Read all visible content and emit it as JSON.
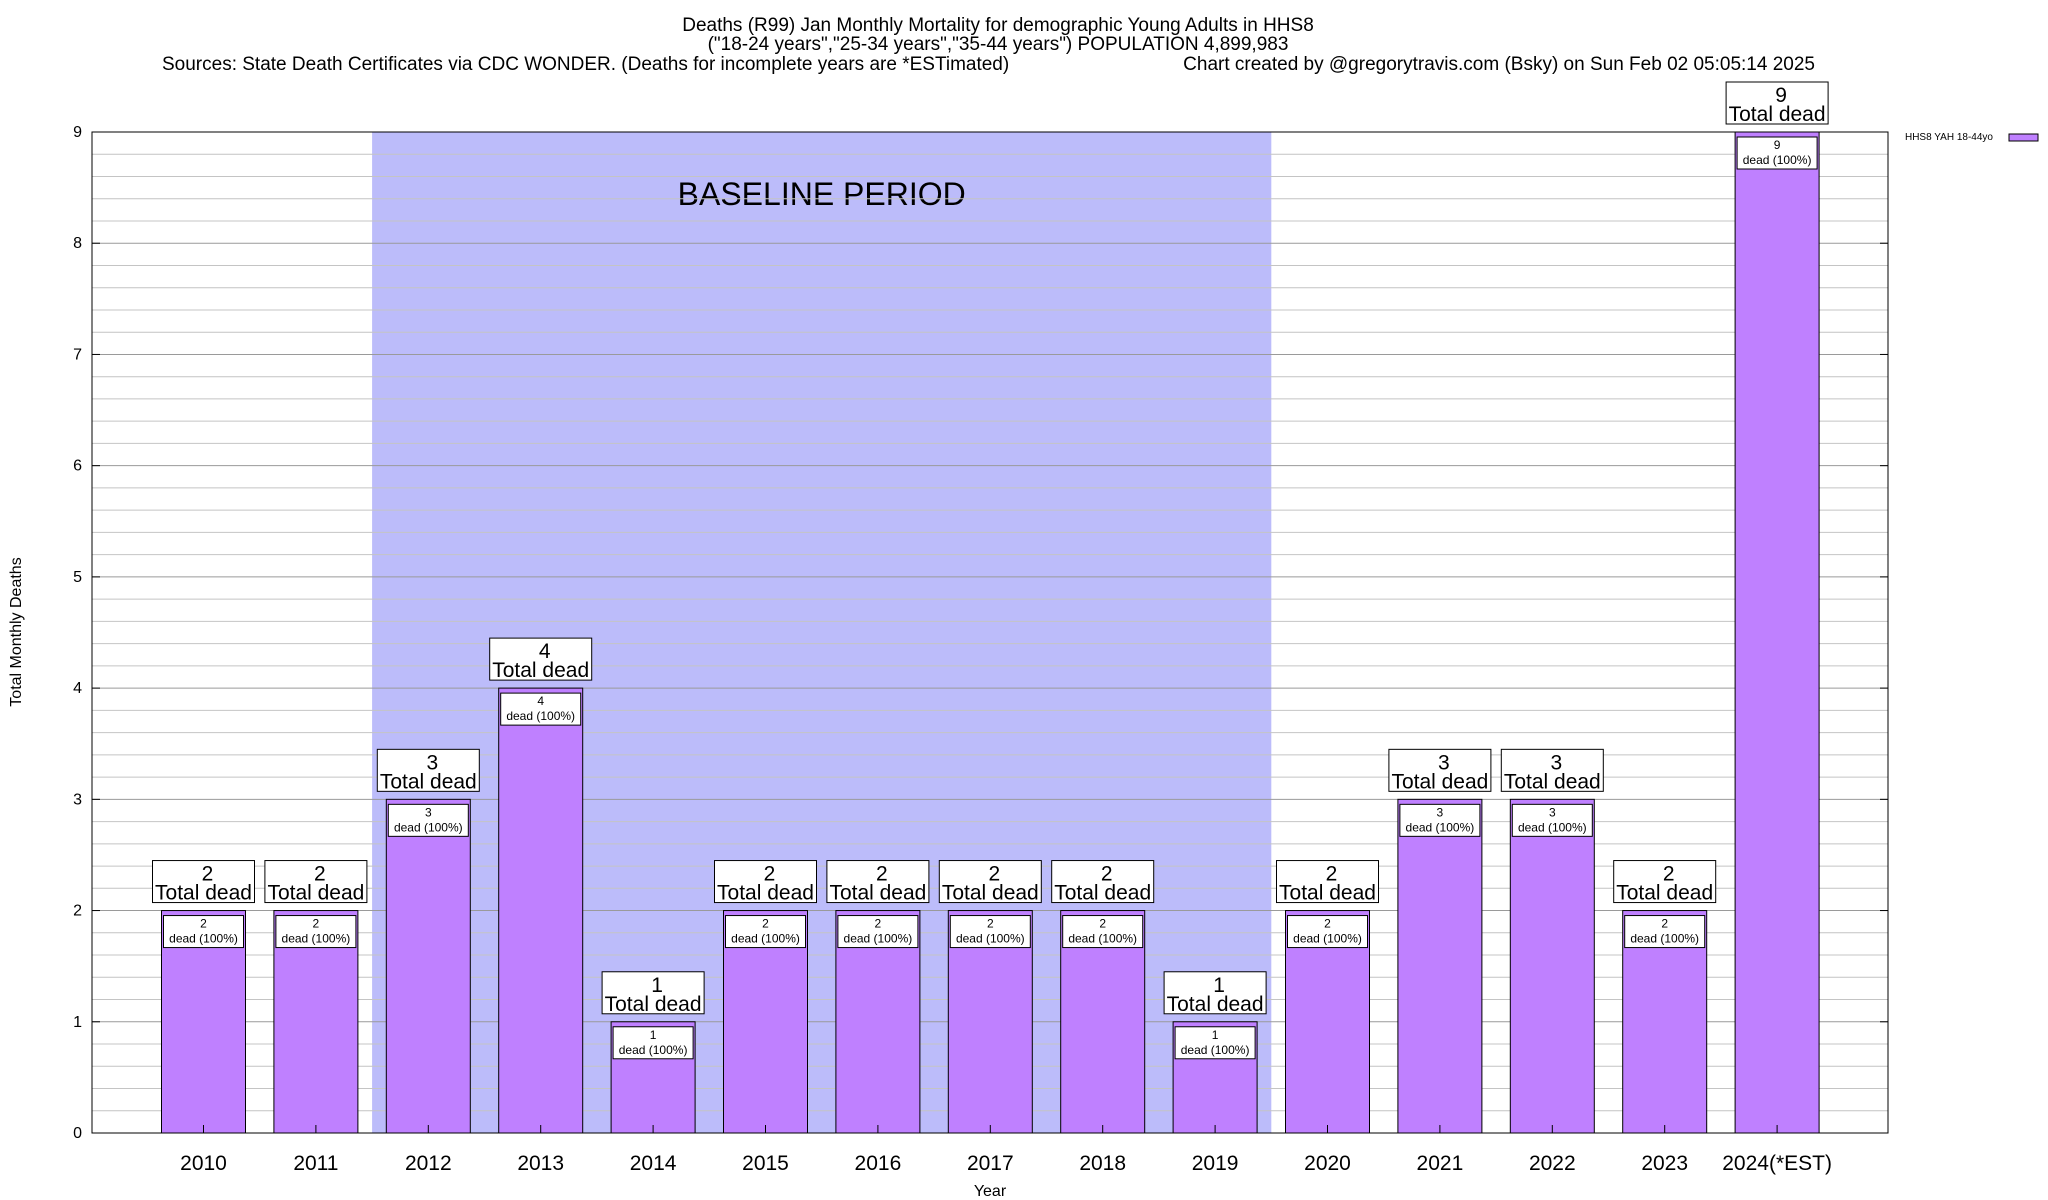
{
  "chart_data": {
    "type": "bar",
    "title_lines": [
      "Deaths (R99) Jan Monthly Mortality for demographic Young Adults in HHS8",
      "(\"18-24 years\",\"25-34 years\",\"35-44 years\") POPULATION 4,899,983",
      "Sources: State Death Certificates via CDC WONDER. (Deaths for incomplete years are *ESTimated)",
      "Chart created by @gregorytravis.com (Bsky) on Sun Feb 02 05:05:14 2025"
    ],
    "xlabel": "Year",
    "ylabel": "Total Monthly Deaths",
    "ylim": [
      0,
      9
    ],
    "yticks": [
      0,
      1,
      2,
      3,
      4,
      5,
      6,
      7,
      8,
      9
    ],
    "grid": true,
    "categories": [
      "2010",
      "2011",
      "2012",
      "2013",
      "2014",
      "2015",
      "2016",
      "2017",
      "2018",
      "2019",
      "2020",
      "2021",
      "2022",
      "2023",
      "2024(*EST)"
    ],
    "series": [
      {
        "name": "HHS8 YAH 18-44yo",
        "color": "#bf80ff",
        "values": [
          2,
          2,
          3,
          4,
          1,
          2,
          2,
          2,
          2,
          1,
          2,
          3,
          3,
          2,
          9
        ]
      }
    ],
    "total_label_suffix": "Total dead",
    "inner_label_suffix": "dead (100%)",
    "baseline_period": {
      "label": "BASELINE PERIOD",
      "start": "2012",
      "end": "2019",
      "color": "#bcbcfa"
    },
    "legend_position": "top-right"
  }
}
